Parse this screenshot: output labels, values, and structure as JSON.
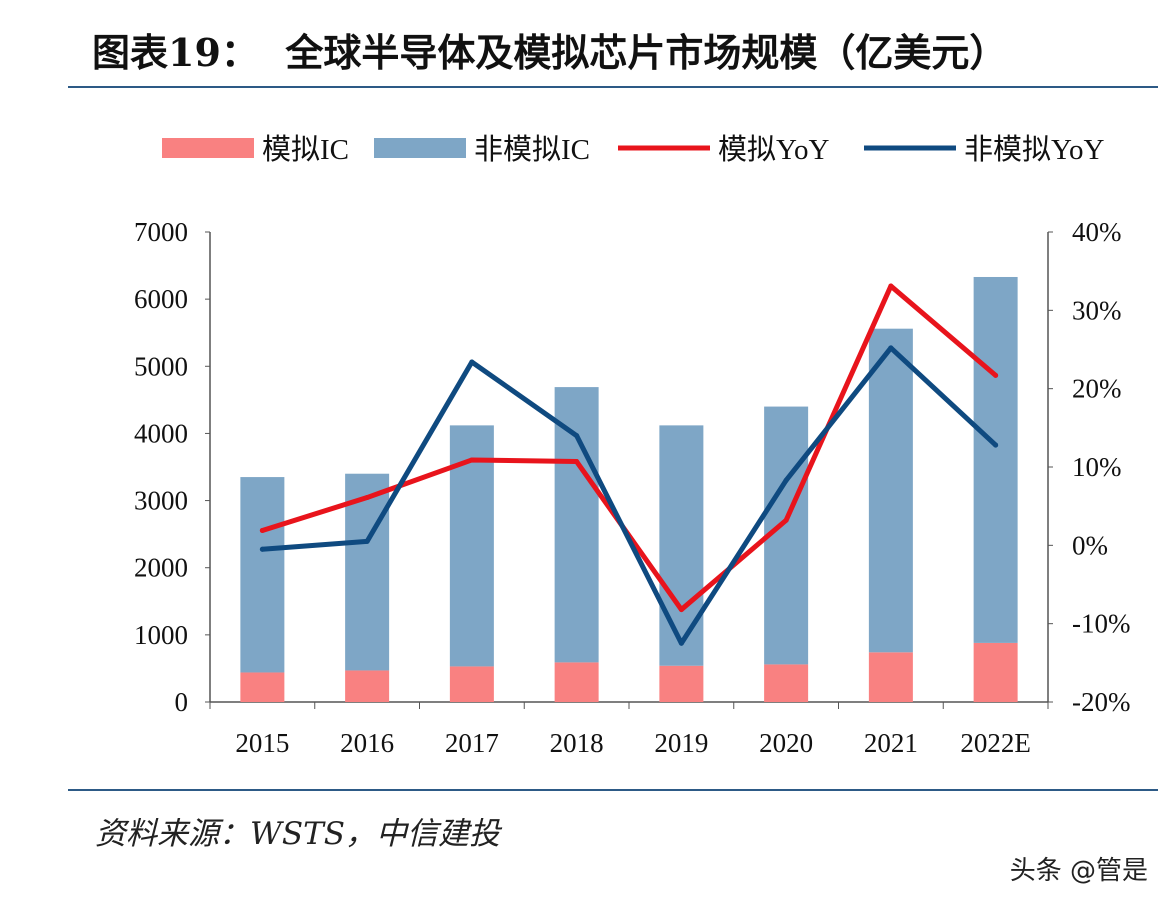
{
  "title": "图表19：  全球半导体及模拟芯片市场规模（亿美元）",
  "source": "资料来源：WSTS，中信建投",
  "watermark": "头条 @管是",
  "chart_data": {
    "type": "bar",
    "stacked": true,
    "categories": [
      "2015",
      "2016",
      "2017",
      "2018",
      "2019",
      "2020",
      "2021",
      "2022E"
    ],
    "series": [
      {
        "name": "模拟IC",
        "type": "bar",
        "axis": "left",
        "color": "#f98181",
        "values": [
          440,
          470,
          530,
          590,
          540,
          560,
          740,
          880
        ]
      },
      {
        "name": "非模拟IC",
        "type": "bar",
        "axis": "left",
        "color": "#7ea6c6",
        "values": [
          2910,
          2930,
          3590,
          4100,
          3580,
          3840,
          4820,
          5450
        ]
      },
      {
        "name": "模拟YoY",
        "type": "line",
        "axis": "right",
        "color": "#e8141c",
        "values": [
          1.9,
          6.1,
          10.9,
          10.7,
          -8.2,
          3.2,
          33.1,
          21.7
        ]
      },
      {
        "name": "非模拟YoY",
        "type": "line",
        "axis": "right",
        "color": "#0f4a80",
        "values": [
          -0.5,
          0.5,
          23.4,
          14.0,
          -12.5,
          8.3,
          25.2,
          12.8
        ]
      }
    ],
    "left_axis": {
      "range": [
        0,
        7000
      ],
      "ticks": [
        "0",
        "1000",
        "2000",
        "3000",
        "4000",
        "5000",
        "6000",
        "7000"
      ]
    },
    "right_axis": {
      "range": [
        -20,
        40
      ],
      "unit": "%",
      "ticks": [
        "-20%",
        "-10%",
        "0%",
        "10%",
        "20%",
        "30%",
        "40%"
      ]
    },
    "legend_position": "top",
    "grid": false
  }
}
